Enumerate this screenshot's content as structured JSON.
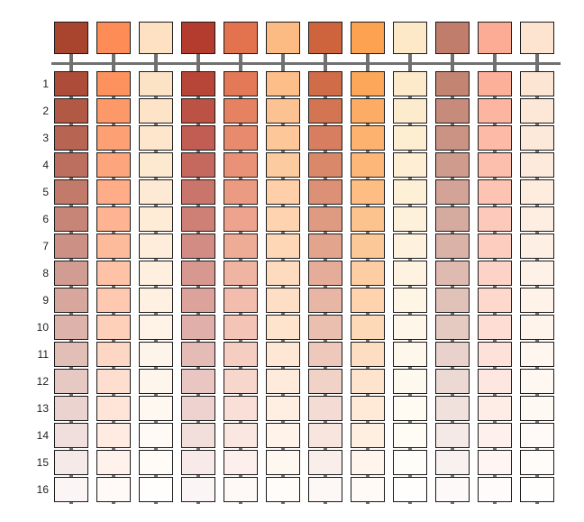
{
  "base_colors": [
    "#a9442f",
    "#fd8c57",
    "#fde1c2",
    "#b43c2e",
    "#e3724f",
    "#fdbb84",
    "#ce643e",
    "#fca251",
    "#fde9c7",
    "#c07d6b",
    "#fcac95",
    "#fde4d1"
  ],
  "row_labels": [
    "1",
    "2",
    "3",
    "4",
    "5",
    "6",
    "7",
    "8",
    "9",
    "10",
    "11",
    "12",
    "13",
    "14",
    "15",
    "16"
  ]
}
